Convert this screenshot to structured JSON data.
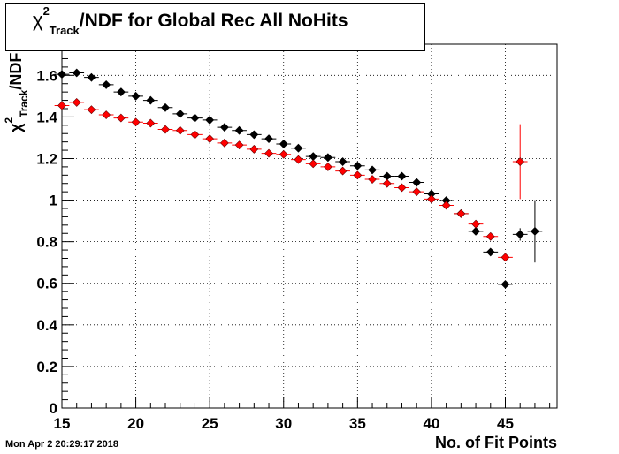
{
  "title": {
    "chi": "χ",
    "sup": "2",
    "sub": "Track",
    "rest": "/NDF for Global Rec All NoHits"
  },
  "ylabel": {
    "chi": "χ",
    "sup": "2",
    "sub": "Track",
    "rest": "/NDF"
  },
  "timestamp": "Mon Apr  2 20:29:17 2018",
  "chart_data": {
    "type": "scatter",
    "title": "χ²_Track/NDF for Global Rec All NoHits",
    "xlabel": "No. of Fit Points",
    "ylabel": "χ²_Track/NDF",
    "xlim": [
      15,
      48.5
    ],
    "ylim": [
      0,
      1.75
    ],
    "grid": true,
    "x_ticks": [
      15,
      20,
      25,
      30,
      35,
      40,
      45
    ],
    "y_ticks": [
      0,
      0.2,
      0.4,
      0.6,
      0.8,
      1,
      1.2,
      1.4,
      1.6
    ],
    "x_tick_labels": [
      "15",
      "20",
      "25",
      "30",
      "35",
      "40",
      "45"
    ],
    "y_tick_labels": [
      "0",
      "0.2",
      "0.4",
      "0.6",
      "0.8",
      "1",
      "1.2",
      "1.4",
      "1.6"
    ],
    "series": [
      {
        "color": "#000000",
        "x": [
          15,
          16,
          17,
          18,
          19,
          20,
          21,
          22,
          23,
          24,
          25,
          26,
          27,
          28,
          29,
          30,
          31,
          32,
          33,
          34,
          35,
          36,
          37,
          38,
          39,
          40,
          41,
          42,
          43,
          44,
          45,
          46,
          47
        ],
        "y": [
          1.605,
          1.612,
          1.59,
          1.555,
          1.52,
          1.5,
          1.48,
          1.445,
          1.415,
          1.395,
          1.385,
          1.35,
          1.335,
          1.315,
          1.295,
          1.27,
          1.25,
          1.21,
          1.205,
          1.185,
          1.165,
          1.145,
          1.115,
          1.115,
          1.085,
          1.03,
          0.998,
          0.935,
          0.85,
          0.75,
          0.595,
          0.835,
          0.85
        ],
        "yerr": [
          0.003,
          0.003,
          0.003,
          0.003,
          0.003,
          0.003,
          0.003,
          0.003,
          0.003,
          0.003,
          0.003,
          0.003,
          0.003,
          0.003,
          0.003,
          0.003,
          0.003,
          0.003,
          0.003,
          0.003,
          0.003,
          0.003,
          0.003,
          0.003,
          0.003,
          0.004,
          0.005,
          0.006,
          0.008,
          0.01,
          0.015,
          0.03,
          0.15
        ]
      },
      {
        "color": "#ff0000",
        "x": [
          15,
          16,
          17,
          18,
          19,
          20,
          21,
          22,
          23,
          24,
          25,
          26,
          27,
          28,
          29,
          30,
          31,
          32,
          33,
          34,
          35,
          36,
          37,
          38,
          39,
          40,
          41,
          42,
          43,
          44,
          45,
          46
        ],
        "y": [
          1.455,
          1.47,
          1.435,
          1.41,
          1.395,
          1.375,
          1.37,
          1.34,
          1.335,
          1.315,
          1.295,
          1.275,
          1.265,
          1.245,
          1.225,
          1.22,
          1.195,
          1.175,
          1.16,
          1.14,
          1.12,
          1.1,
          1.08,
          1.06,
          1.04,
          1.005,
          0.975,
          0.935,
          0.885,
          0.825,
          0.725,
          1.185
        ],
        "yerr": [
          0.003,
          0.003,
          0.003,
          0.003,
          0.003,
          0.003,
          0.003,
          0.003,
          0.003,
          0.003,
          0.003,
          0.003,
          0.003,
          0.003,
          0.003,
          0.003,
          0.003,
          0.003,
          0.003,
          0.003,
          0.003,
          0.003,
          0.003,
          0.003,
          0.003,
          0.004,
          0.005,
          0.006,
          0.008,
          0.01,
          0.015,
          0.18
        ]
      }
    ]
  }
}
